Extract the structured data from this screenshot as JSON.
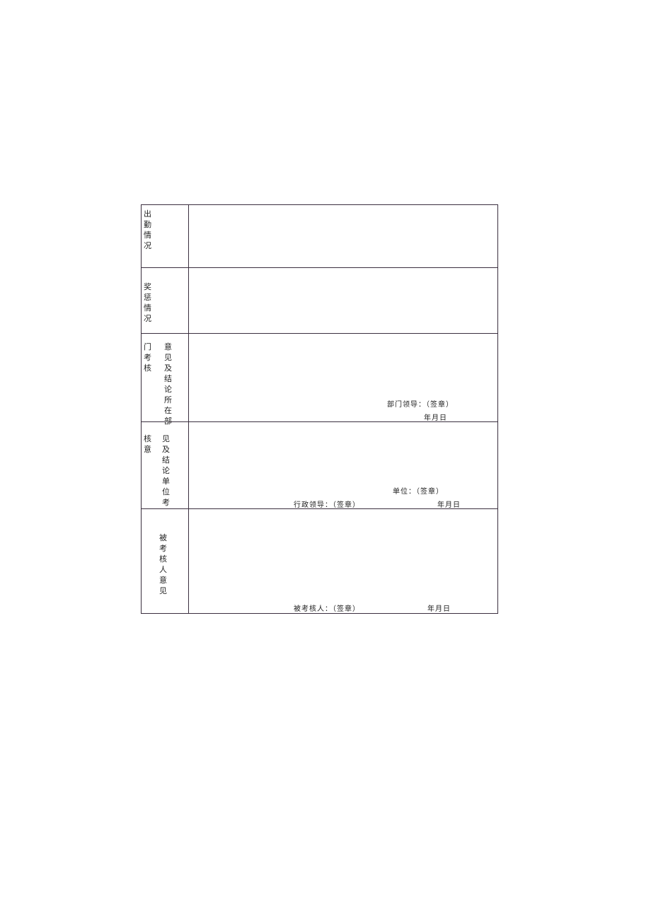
{
  "form": {
    "rows": [
      {
        "label": "出勤情况"
      },
      {
        "label": "奖惩情况"
      },
      {
        "label_a": "门考核",
        "label_b": "意见及结论所在部",
        "sign": "部门领导：（签章）",
        "date": "年月日"
      },
      {
        "label_a": "核意",
        "label_b": "见及结论单位考",
        "sign_unit": "单位：（签章）",
        "sign": "行政领导：（签章）",
        "date": "年月日"
      },
      {
        "label": "被考核人意见",
        "sign": "被考核人：（签章）",
        "date": "年月日"
      }
    ]
  }
}
